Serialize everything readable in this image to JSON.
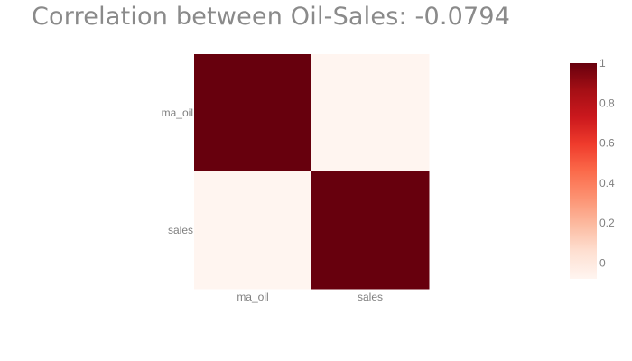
{
  "chart_data": {
    "type": "heatmap",
    "title": "Correlation between Oil-Sales: -0.0794",
    "x_categories": [
      "ma_oil",
      "sales"
    ],
    "y_categories": [
      "ma_oil",
      "sales"
    ],
    "z": [
      [
        1,
        -0.0794
      ],
      [
        -0.0794,
        1
      ]
    ],
    "zmin": -0.0794,
    "zmax": 1,
    "colorscale": "Reds",
    "colorbar": {
      "tick_values": [
        0,
        0.2,
        0.4,
        0.6,
        0.8,
        1
      ],
      "tick_labels": [
        "0",
        "0.2",
        "0.4",
        "0.6",
        "0.8",
        "1"
      ],
      "placement": "right"
    }
  }
}
